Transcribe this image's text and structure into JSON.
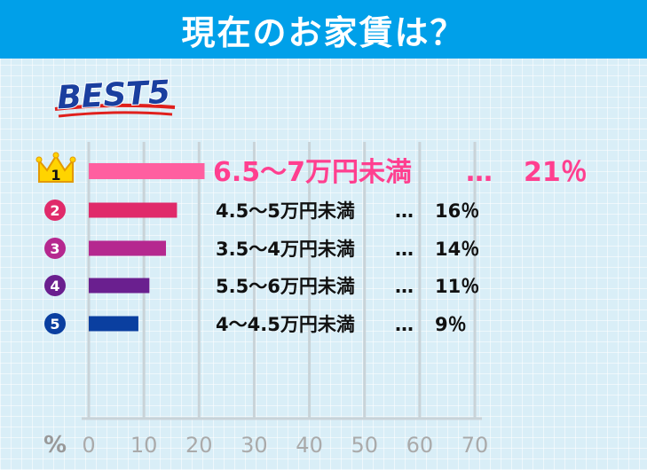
{
  "header": {
    "title": "現在のお家賃は？"
  },
  "badge": {
    "text": "BEST5"
  },
  "colors": {
    "header_bg": "#00a0e9",
    "bars": [
      "#ff5fa0",
      "#e02a6a",
      "#b5288f",
      "#6a1f8f",
      "#0a3fa0"
    ],
    "rank1_text": "#ff3f8f",
    "text": "#111111"
  },
  "rank_icons": [
    "crown-icon",
    "circle-2-icon",
    "circle-3-icon",
    "circle-4-icon",
    "circle-5-icon"
  ],
  "chart_data": {
    "type": "bar",
    "orientation": "horizontal",
    "xlabel": "%",
    "xlim": [
      0,
      70
    ],
    "xticks": [
      "0",
      "10",
      "20",
      "30",
      "40",
      "50",
      "60",
      "70"
    ],
    "grid": true,
    "ranks": [
      "1",
      "2",
      "3",
      "4",
      "5"
    ],
    "categories": [
      "6.5～7万円未満",
      "4.5～5万円未満",
      "3.5～4万円未満",
      "5.5～6万円未満",
      "4～4.5万円未満"
    ],
    "values": [
      21,
      16,
      14,
      11,
      9
    ],
    "labels": [
      {
        "range": "6.5～7万円未満",
        "sep": "…",
        "pct": "21％"
      },
      {
        "range": "4.5～5万円未満",
        "sep": "…",
        "pct": "16％"
      },
      {
        "range": "3.5～4万円未満",
        "sep": "…",
        "pct": "14％"
      },
      {
        "range": "5.5～6万円未満",
        "sep": "…",
        "pct": "11％"
      },
      {
        "range": "4～4.5万円未満",
        "sep": "…",
        "pct": "9％"
      }
    ]
  }
}
